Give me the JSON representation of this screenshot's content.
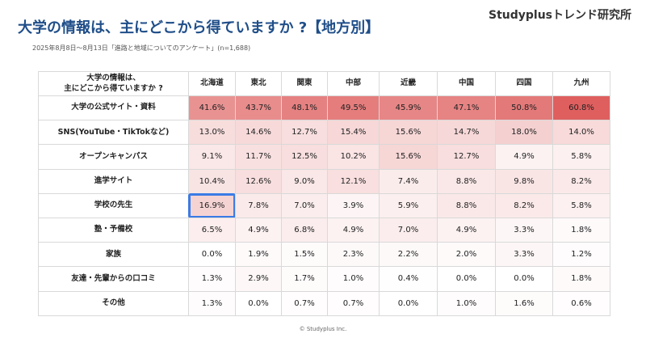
{
  "header": {
    "title": "大学の情報は、主にどこから得ていますか ?【地方別】",
    "brand": "Studyplusトレンド研究所",
    "note": "2025年8月8日〜8月13日「進路と地域についてのアンケート」(n=1,688)"
  },
  "table": {
    "corner": "大学の情報は、\n主にどこから得ていますか ?",
    "columns": [
      "北海道",
      "東北",
      "関東",
      "中部",
      "近畿",
      "中国",
      "四国",
      "九州"
    ],
    "rows": [
      {
        "label": "大学の公式サイト・資料",
        "cells": [
          "41.6%",
          "43.7%",
          "48.1%",
          "49.5%",
          "45.9%",
          "47.1%",
          "50.8%",
          "60.8%"
        ]
      },
      {
        "label": "SNS(YouTube・TikTokなど)",
        "cells": [
          "13.0%",
          "14.6%",
          "12.7%",
          "15.4%",
          "15.6%",
          "14.7%",
          "18.0%",
          "14.0%"
        ]
      },
      {
        "label": "オープンキャンパス",
        "cells": [
          "9.1%",
          "11.7%",
          "12.5%",
          "10.2%",
          "15.6%",
          "12.7%",
          "4.9%",
          "5.8%"
        ]
      },
      {
        "label": "進学サイト",
        "cells": [
          "10.4%",
          "12.6%",
          "9.0%",
          "12.1%",
          "7.4%",
          "8.8%",
          "9.8%",
          "8.2%"
        ]
      },
      {
        "label": "学校の先生",
        "cells": [
          "16.9%",
          "7.8%",
          "7.0%",
          "3.9%",
          "5.9%",
          "8.8%",
          "8.2%",
          "5.8%"
        ]
      },
      {
        "label": "塾・予備校",
        "cells": [
          "6.5%",
          "4.9%",
          "6.8%",
          "4.9%",
          "7.0%",
          "4.9%",
          "3.3%",
          "1.8%"
        ]
      },
      {
        "label": "家族",
        "cells": [
          "0.0%",
          "1.9%",
          "1.5%",
          "2.3%",
          "2.2%",
          "2.0%",
          "3.3%",
          "1.2%"
        ]
      },
      {
        "label": "友達・先輩からの口コミ",
        "cells": [
          "1.3%",
          "2.9%",
          "1.7%",
          "1.0%",
          "0.4%",
          "0.0%",
          "0.0%",
          "1.8%"
        ]
      },
      {
        "label": "その他",
        "cells": [
          "1.3%",
          "0.0%",
          "0.7%",
          "0.7%",
          "0.0%",
          "1.0%",
          "1.6%",
          "0.6%"
        ]
      }
    ]
  },
  "footer": "© Studyplus Inc."
}
